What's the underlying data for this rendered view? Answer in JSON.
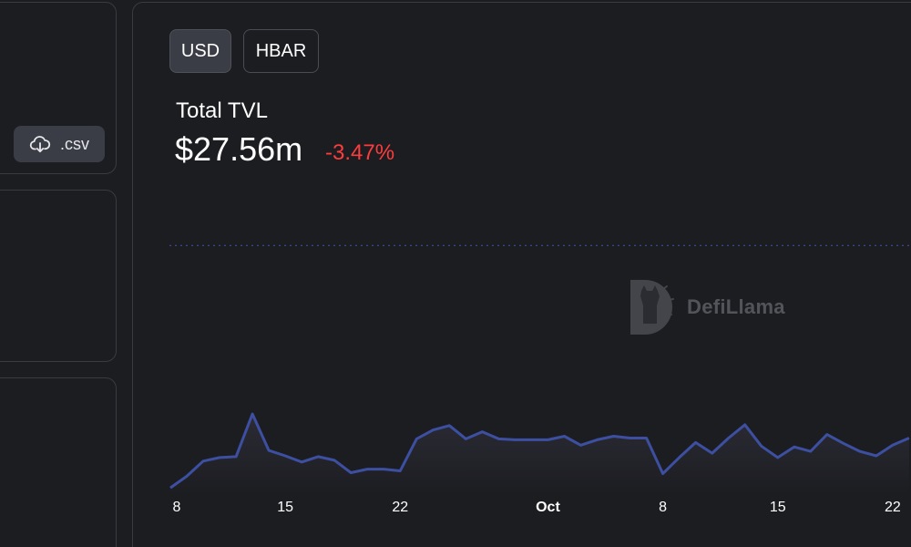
{
  "toolbar": {
    "csv_label": ".csv",
    "csv_icon": "cloud-download-icon"
  },
  "denomination": {
    "options": [
      "USD",
      "HBAR"
    ],
    "selected": "USD"
  },
  "tvl": {
    "label": "Total TVL",
    "value": "$27.56m",
    "change": "-3.47%",
    "change_color": "#fd3c3c"
  },
  "watermark": {
    "text": "DefiLlama"
  },
  "colors": {
    "line": "#3d4fa0",
    "area_top": "#2a2b35",
    "background": "#1c1d21"
  },
  "chart_data": {
    "type": "area",
    "x_ticks": [
      "8",
      "15",
      "22",
      "Oct",
      "8",
      "15",
      "22"
    ],
    "x": [
      "Sep 8",
      "Sep 9",
      "Sep 10",
      "Sep 11",
      "Sep 12",
      "Sep 13",
      "Sep 14",
      "Sep 15",
      "Sep 16",
      "Sep 17",
      "Sep 18",
      "Sep 19",
      "Sep 20",
      "Sep 21",
      "Sep 22",
      "Sep 23",
      "Sep 24",
      "Sep 25",
      "Sep 26",
      "Sep 27",
      "Sep 28",
      "Sep 29",
      "Sep 30",
      "Oct 1",
      "Oct 2",
      "Oct 3",
      "Oct 4",
      "Oct 5",
      "Oct 6",
      "Oct 7",
      "Oct 8",
      "Oct 9",
      "Oct 10",
      "Oct 11",
      "Oct 12",
      "Oct 13",
      "Oct 14",
      "Oct 15",
      "Oct 16",
      "Oct 17",
      "Oct 18",
      "Oct 19",
      "Oct 20",
      "Oct 21",
      "Oct 22",
      "Oct 23"
    ],
    "values": [
      0.3,
      1.6,
      3.3,
      3.7,
      3.8,
      8.6,
      4.5,
      3.9,
      3.2,
      3.8,
      3.4,
      2.0,
      2.4,
      2.4,
      2.2,
      5.8,
      6.8,
      7.3,
      5.8,
      6.6,
      5.8,
      5.7,
      5.7,
      5.7,
      6.1,
      5.1,
      5.7,
      6.1,
      5.9,
      5.9,
      1.9,
      3.7,
      5.4,
      4.2,
      5.9,
      7.4,
      5.0,
      3.7,
      4.9,
      4.4,
      6.3,
      5.3,
      4.4,
      3.9,
      5.1,
      5.9
    ],
    "ylim": [
      0,
      28
    ],
    "reference_line": 27.56,
    "grid": false
  }
}
